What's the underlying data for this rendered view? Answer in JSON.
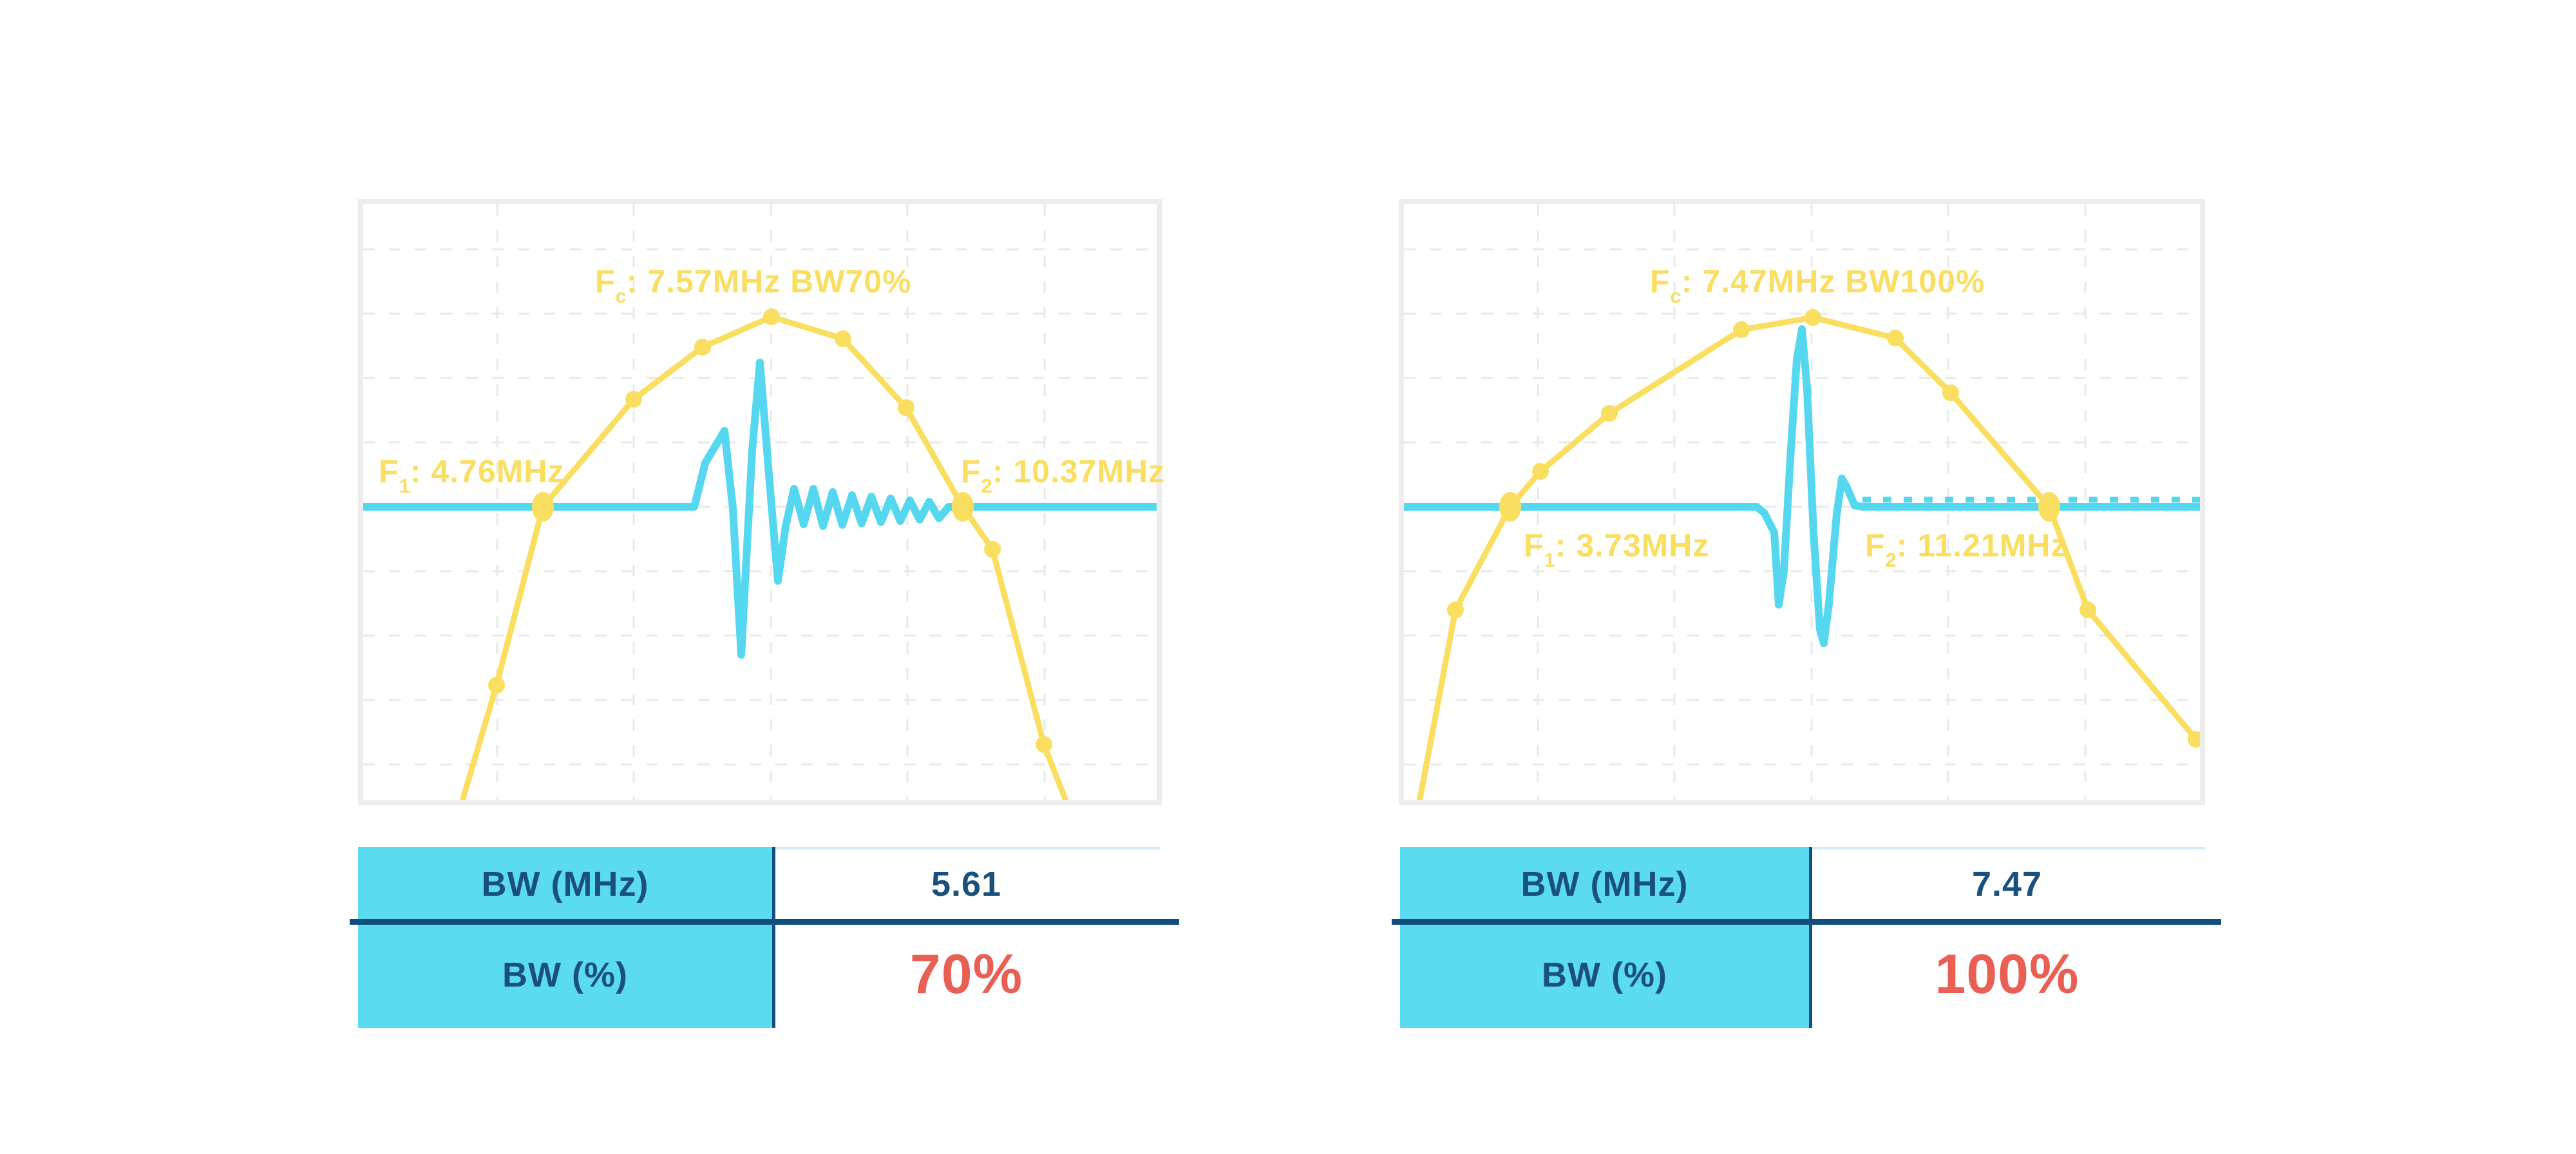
{
  "palette": {
    "spectrum_yellow": "#FADE5F",
    "pulse_cyan": "#55D7EF",
    "table_fill_cyan": "#5BDBEF",
    "navy_text": "#1A507D",
    "divider_navy": "#0F4E7D",
    "accent_red": "#EA5F54",
    "frame_gray": "#EDEDED",
    "grid_gray": "#E9E9E9"
  },
  "charts": [
    {
      "fc": {
        "f": "F",
        "sub": "c",
        "rest": ": 7.57MHz BW70%"
      },
      "f1": {
        "f": "F",
        "sub": "1",
        "rest": ": 4.76MHz"
      },
      "f2": {
        "f": "F",
        "sub": "2",
        "rest": ": 10.37MHz"
      },
      "table": {
        "row1_label": "BW (MHz)",
        "row1_value": "5.61",
        "row2_label": "BW (%)",
        "row2_value": "70%"
      }
    },
    {
      "fc": {
        "f": "F",
        "sub": "c",
        "rest": ": 7.47MHz BW100%"
      },
      "f1": {
        "f": "F",
        "sub": "1",
        "rest": ": 3.73MHz"
      },
      "f2": {
        "f": "F",
        "sub": "2",
        "rest": ": 11.21MHz"
      },
      "table": {
        "row1_label": "BW (MHz)",
        "row1_value": "7.47",
        "row2_label": "BW (%)",
        "row2_value": "100%"
      }
    }
  ],
  "chart_data": [
    {
      "type": "line",
      "title": "Fc: 7.57MHz BW70%",
      "xlabel": "",
      "ylabel": "",
      "axes_labeled": false,
      "grid": true,
      "annotations": {
        "fc_mhz": 7.57,
        "f1_mhz": 4.76,
        "f2_mhz": 10.37,
        "bw_mhz": 5.61,
        "bw_pct": 70
      },
      "units_note": "no axis scale shown; point coords are plot pixels 0-1232 x / 0-925 y",
      "layout": {
        "v_grid": [
          208,
          420,
          633,
          845,
          1058
        ],
        "h_grid": [
          70,
          170,
          270,
          370,
          470,
          570,
          670,
          770,
          870
        ],
        "ripple": null
      },
      "series": [
        {
          "name": "transducer-spectrum",
          "color": "#FADE5F",
          "width": 9,
          "points": [
            [
              144,
              960
            ],
            [
              207,
              747
            ],
            [
              279,
              470
            ],
            [
              420,
              303
            ],
            [
              527,
              222
            ],
            [
              634,
              175
            ],
            [
              745,
              209
            ],
            [
              843,
              316
            ],
            [
              931,
              470
            ],
            [
              977,
              536
            ],
            [
              1057,
              839
            ],
            [
              1104,
              960
            ]
          ],
          "markers": [
            [
              207,
              747
            ],
            [
              420,
              303
            ],
            [
              527,
              222
            ],
            [
              634,
              175
            ],
            [
              745,
              209
            ],
            [
              843,
              316
            ],
            [
              977,
              536
            ],
            [
              1057,
              839
            ]
          ],
          "big_markers": [
            [
              279,
              470
            ],
            [
              931,
              470
            ]
          ]
        },
        {
          "name": "pulse-echo-waveform",
          "color": "#55D7EF",
          "width": 12,
          "points": [
            [
              0,
              470
            ],
            [
              514,
              470
            ],
            [
              531,
              402
            ],
            [
              561,
              352
            ],
            [
              574,
              472
            ],
            [
              587,
              700
            ],
            [
              604,
              382
            ],
            [
              616,
              246
            ],
            [
              631,
              432
            ],
            [
              644,
              585
            ],
            [
              656,
              500
            ],
            [
              669,
              442
            ],
            [
              684,
              497
            ],
            [
              699,
              442
            ],
            [
              714,
              500
            ],
            [
              729,
              447
            ],
            [
              744,
              498
            ],
            [
              759,
              452
            ],
            [
              774,
              496
            ],
            [
              789,
              454
            ],
            [
              804,
              494
            ],
            [
              819,
              457
            ],
            [
              834,
              492
            ],
            [
              849,
              460
            ],
            [
              864,
              490
            ],
            [
              879,
              462
            ],
            [
              894,
              488
            ],
            [
              909,
              470
            ],
            [
              1232,
              470
            ]
          ],
          "markers": [],
          "big_markers": []
        }
      ]
    },
    {
      "type": "line",
      "title": "Fc: 7.47MHz BW100%",
      "xlabel": "",
      "ylabel": "",
      "axes_labeled": false,
      "grid": true,
      "annotations": {
        "fc_mhz": 7.47,
        "f1_mhz": 3.73,
        "f2_mhz": 11.21,
        "bw_mhz": 7.47,
        "bw_pct": 100
      },
      "units_note": "no axis scale shown; point coords are plot pixels 0-1236 x / 0-925 y",
      "layout": {
        "v_grid": [
          208,
          420,
          633,
          845,
          1058
        ],
        "h_grid": [
          70,
          170,
          270,
          370,
          470,
          570,
          670,
          770,
          870
        ],
        "ripple": {
          "x1": 712,
          "x2": 1236,
          "y": 459,
          "dash": "13 19",
          "width": 9
        }
      },
      "series": [
        {
          "name": "transducer-spectrum",
          "color": "#FADE5F",
          "width": 9,
          "points": [
            [
              18,
              960
            ],
            [
              80,
              630
            ],
            [
              165,
              470
            ],
            [
              212,
              415
            ],
            [
              319,
              325
            ],
            [
              524,
              195
            ],
            [
              635,
              176
            ],
            [
              763,
              208
            ],
            [
              849,
              293
            ],
            [
              1002,
              470
            ],
            [
              1062,
              630
            ],
            [
              1230,
              831
            ]
          ],
          "markers": [
            [
              80,
              630
            ],
            [
              212,
              415
            ],
            [
              319,
              325
            ],
            [
              524,
              195
            ],
            [
              635,
              176
            ],
            [
              763,
              208
            ],
            [
              849,
              293
            ],
            [
              1062,
              630
            ],
            [
              1230,
              831
            ]
          ],
          "big_markers": [
            [
              165,
              470
            ],
            [
              1002,
              470
            ]
          ]
        },
        {
          "name": "pulse-echo-waveform",
          "color": "#55D7EF",
          "width": 12,
          "points": [
            [
              0,
              470
            ],
            [
              548,
              470
            ],
            [
              560,
              480
            ],
            [
              575,
              510
            ],
            [
              582,
              622
            ],
            [
              590,
              570
            ],
            [
              600,
              395
            ],
            [
              610,
              242
            ],
            [
              618,
              194
            ],
            [
              626,
              286
            ],
            [
              636,
              510
            ],
            [
              646,
              660
            ],
            [
              652,
              682
            ],
            [
              660,
              620
            ],
            [
              672,
              482
            ],
            [
              680,
              426
            ],
            [
              688,
              440
            ],
            [
              700,
              468
            ],
            [
              712,
              470
            ],
            [
              1236,
              470
            ]
          ],
          "markers": [],
          "big_markers": []
        }
      ]
    }
  ]
}
